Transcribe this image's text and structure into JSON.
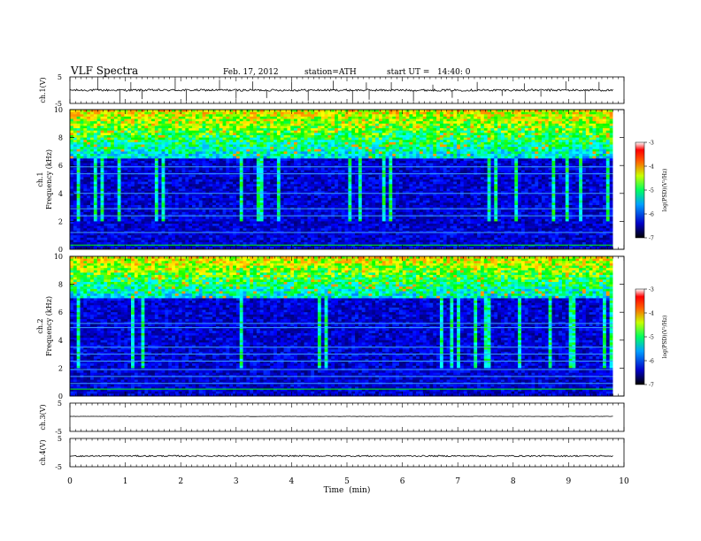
{
  "header": {
    "title": "VLF Spectra",
    "date": "Feb. 17, 2012",
    "station": "station=ATH",
    "start_ut": "start UT =   14:40: 0"
  },
  "chart_data": [
    {
      "type": "line",
      "panel": "ch1-waveform",
      "ylabel": "ch.1(V)",
      "ylim": [
        -5,
        5
      ],
      "yticks": [
        "5",
        "-5"
      ],
      "xlim": [
        0,
        10
      ],
      "baseline": 0.0,
      "noise_amplitude": 0.4,
      "spike_times_min": [
        0.5,
        0.9,
        1.1,
        1.3,
        1.9,
        2.1,
        2.7,
        3.0,
        3.3,
        3.55,
        4.0,
        4.3,
        4.75,
        5.1,
        5.35,
        5.4,
        5.8,
        6.2,
        6.55,
        6.9,
        7.35,
        7.8,
        8.2,
        8.5,
        8.95,
        9.3,
        9.55
      ]
    },
    {
      "type": "heatmap",
      "panel": "ch1-spectrogram",
      "ylabel": "Frequency (kHz)",
      "side_label": "ch.1",
      "ylim": [
        0,
        10
      ],
      "yticks": [
        "0",
        "2",
        "4",
        "6",
        "8",
        "10"
      ],
      "xlim": [
        0,
        10
      ],
      "data_extent_min": 9.8,
      "intense_band_khz": [
        6.5,
        10
      ],
      "hum_lines_khz": [
        0.3,
        1.2,
        2.4,
        2.9,
        4.0,
        5.4,
        5.9
      ],
      "colorbar": {
        "label": "log(PSD)(V²/Hz)",
        "range": [
          -7,
          -3
        ],
        "ticks": [
          "-3",
          "-4",
          "-5",
          "-6",
          "-7"
        ]
      }
    },
    {
      "type": "heatmap",
      "panel": "ch2-spectrogram",
      "ylabel": "Frequency (kHz)",
      "side_label": "ch.2",
      "ylim": [
        0,
        10
      ],
      "yticks": [
        "0",
        "2",
        "4",
        "6",
        "8",
        "10"
      ],
      "xlim": [
        0,
        10
      ],
      "data_extent_min": 9.8,
      "intense_band_khz": [
        7,
        10
      ],
      "hum_lines_khz": [
        0.5,
        0.9,
        1.4,
        1.9,
        2.5,
        3.0,
        3.5,
        4.9,
        5.2
      ],
      "colorbar": {
        "label": "log(PSD)(V²/Hz)",
        "range": [
          -7,
          -3
        ],
        "ticks": [
          "-3",
          "-4",
          "-5",
          "-6",
          "-7"
        ]
      }
    },
    {
      "type": "line",
      "panel": "ch3-waveform",
      "ylabel": "ch.3(V)",
      "ylim": [
        -5,
        5
      ],
      "yticks": [
        "5",
        "-5"
      ],
      "xlim": [
        0,
        10
      ],
      "baseline": 0.3,
      "noise_amplitude": 0.05
    },
    {
      "type": "line",
      "panel": "ch4-waveform",
      "ylabel": "ch.4(V)",
      "ylim": [
        -5,
        5
      ],
      "yticks": [
        "5",
        "-5"
      ],
      "xlim": [
        0,
        10
      ],
      "baseline": -1.2,
      "noise_amplitude": 0.25
    }
  ],
  "x_axis": {
    "label": "Time  (min)",
    "ticks": [
      "0",
      "1",
      "2",
      "3",
      "4",
      "5",
      "6",
      "7",
      "8",
      "9",
      "10"
    ]
  },
  "colors": {
    "axis": "#000000",
    "trace": "#000000",
    "colormap": [
      "#000000",
      "#00007a",
      "#0000ff",
      "#0080ff",
      "#00ffff",
      "#00ff00",
      "#ffff00",
      "#ff8000",
      "#ff0000",
      "#ffffff"
    ]
  }
}
